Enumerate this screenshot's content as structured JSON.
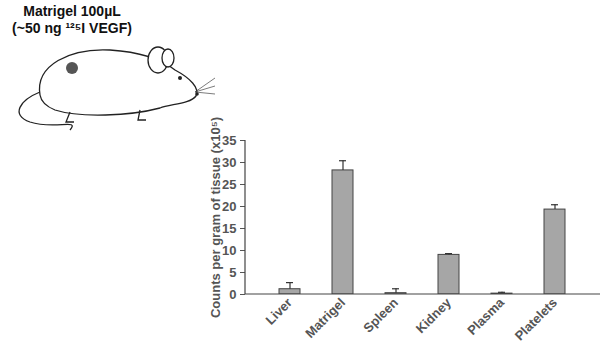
{
  "chart_data": {
    "type": "bar",
    "annotations": [
      "Matrigel 100µL",
      "(~50 ng ¹²⁵I VEGF)"
    ],
    "y_label": "Counts per gram of tissue (x10⁵)",
    "categories": [
      "Liver",
      "Matrigel",
      "Spleen",
      "Kidney",
      "Plasma",
      "Platelets"
    ],
    "values": [
      1.2,
      28.2,
      0.3,
      9.0,
      0.2,
      19.3
    ],
    "errors": [
      1.5,
      2.2,
      1.0,
      0.3,
      0.3,
      1.1
    ],
    "color": "#a6a6a6",
    "ylim": [
      0,
      35
    ],
    "yticks": [
      0,
      5,
      10,
      15,
      20,
      25,
      30,
      35
    ],
    "grid": false
  }
}
